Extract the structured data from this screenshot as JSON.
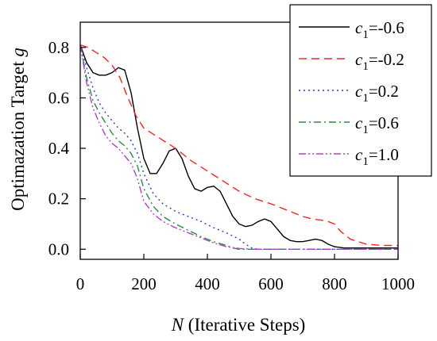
{
  "chart_data": {
    "type": "line",
    "title": "",
    "xlabel_var": "N",
    "xlabel_rest": " (Iterative Steps)",
    "ylabel_text": "Optimazation Target ",
    "ylabel_var": "g",
    "xlim": [
      0,
      1000
    ],
    "ylim": [
      -0.04,
      0.9
    ],
    "x_ticks": [
      "0",
      "200",
      "400",
      "600",
      "800",
      "1000"
    ],
    "y_ticks": [
      "0.0",
      "0.2",
      "0.4",
      "0.6",
      "0.8"
    ],
    "grid": false,
    "legend_position": "top-right",
    "legend_symbol": "c",
    "legend_subscript": "1",
    "series": [
      {
        "name": "c1=-0.6",
        "legend_value": "=-0.6",
        "color": "#000000",
        "dash": "",
        "x": [
          0,
          20,
          40,
          60,
          80,
          100,
          120,
          140,
          160,
          180,
          200,
          220,
          240,
          260,
          280,
          300,
          320,
          340,
          360,
          380,
          400,
          420,
          440,
          460,
          480,
          500,
          520,
          540,
          560,
          580,
          600,
          620,
          640,
          660,
          680,
          700,
          720,
          740,
          760,
          780,
          800,
          830,
          860,
          900,
          950,
          1000
        ],
        "y": [
          0.81,
          0.74,
          0.7,
          0.69,
          0.69,
          0.7,
          0.72,
          0.71,
          0.62,
          0.48,
          0.36,
          0.3,
          0.3,
          0.34,
          0.39,
          0.4,
          0.36,
          0.29,
          0.24,
          0.23,
          0.245,
          0.25,
          0.23,
          0.18,
          0.13,
          0.1,
          0.09,
          0.095,
          0.11,
          0.12,
          0.11,
          0.08,
          0.05,
          0.035,
          0.03,
          0.03,
          0.035,
          0.04,
          0.035,
          0.02,
          0.01,
          0.005,
          0.005,
          0.005,
          0.005,
          0.005
        ]
      },
      {
        "name": "c1=-0.2",
        "legend_value": "=-0.2",
        "color": "#ff2020",
        "dash": "10,6",
        "x": [
          0,
          25,
          50,
          75,
          100,
          125,
          150,
          175,
          200,
          250,
          300,
          350,
          400,
          450,
          500,
          550,
          600,
          650,
          700,
          730,
          760,
          780,
          800,
          820,
          850,
          900,
          950,
          1000
        ],
        "y": [
          0.81,
          0.8,
          0.78,
          0.76,
          0.73,
          0.68,
          0.6,
          0.53,
          0.48,
          0.44,
          0.4,
          0.35,
          0.31,
          0.27,
          0.23,
          0.2,
          0.18,
          0.155,
          0.13,
          0.12,
          0.115,
          0.11,
          0.1,
          0.07,
          0.04,
          0.02,
          0.015,
          0.015
        ]
      },
      {
        "name": "c1=0.2",
        "legend_value": "=0.2",
        "color": "#1f3fdf",
        "dash": "2,4",
        "x": [
          0,
          20,
          40,
          60,
          80,
          100,
          120,
          140,
          160,
          180,
          200,
          230,
          260,
          300,
          340,
          380,
          420,
          460,
          500,
          520,
          540,
          560,
          600,
          700,
          800,
          900,
          1000
        ],
        "y": [
          0.81,
          0.72,
          0.64,
          0.58,
          0.54,
          0.51,
          0.48,
          0.46,
          0.43,
          0.38,
          0.3,
          0.22,
          0.18,
          0.15,
          0.13,
          0.11,
          0.085,
          0.065,
          0.04,
          0.02,
          0.005,
          0,
          0,
          0,
          0,
          0,
          0
        ]
      },
      {
        "name": "c1=0.6",
        "legend_value": "=0.6",
        "color": "#209040",
        "dash": "9,4,2,4",
        "x": [
          0,
          20,
          40,
          60,
          80,
          100,
          120,
          140,
          160,
          180,
          200,
          230,
          260,
          300,
          340,
          380,
          420,
          460,
          480,
          500,
          520,
          560,
          600,
          700,
          800,
          900,
          1000
        ],
        "y": [
          0.81,
          0.68,
          0.59,
          0.54,
          0.5,
          0.46,
          0.43,
          0.41,
          0.38,
          0.33,
          0.24,
          0.17,
          0.13,
          0.1,
          0.075,
          0.05,
          0.03,
          0.015,
          0.005,
          0,
          0,
          0,
          0,
          0,
          0,
          0,
          0
        ]
      },
      {
        "name": "c1=1.0",
        "legend_value": "=1.0",
        "color": "#b040d0",
        "dash": "9,3,2,3,2,3",
        "x": [
          0,
          20,
          40,
          60,
          80,
          100,
          120,
          140,
          160,
          180,
          200,
          230,
          260,
          300,
          340,
          380,
          420,
          460,
          500,
          540,
          600,
          700,
          800,
          900,
          1000
        ],
        "y": [
          0.81,
          0.66,
          0.56,
          0.5,
          0.45,
          0.42,
          0.4,
          0.37,
          0.34,
          0.28,
          0.19,
          0.14,
          0.11,
          0.085,
          0.065,
          0.045,
          0.025,
          0.01,
          0.003,
          0,
          0,
          0,
          0,
          0,
          0
        ]
      }
    ]
  }
}
